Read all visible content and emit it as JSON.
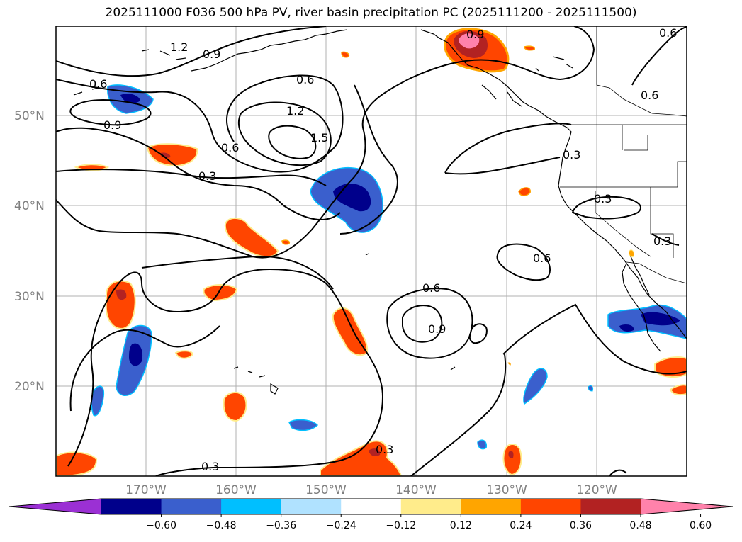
{
  "title": "2025111000 F036 500 hPa PV, river basin precipitation PC (2025111200 - 2025111500)",
  "lat_labels": [
    "50°N",
    "40°N",
    "30°N",
    "20°N"
  ],
  "lon_labels": [
    "170°W",
    "160°W",
    "150°W",
    "140°W",
    "130°W",
    "120°W"
  ],
  "contour_labels": [
    "1.2",
    "0.9",
    "0.6",
    "0.9",
    "0.6",
    "1.2",
    "1.5",
    "0.6",
    "0.3",
    "0.9",
    "0.6",
    "0.6",
    "0.3",
    "0.3",
    "0.3",
    "0.6",
    "0.9",
    "0.6",
    "0.3",
    "0.3"
  ],
  "colorbar": {
    "ticks": [
      "−0.60",
      "−0.48",
      "−0.36",
      "−0.24",
      "−0.12",
      "0.12",
      "0.24",
      "0.36",
      "0.48",
      "0.60"
    ],
    "colors": [
      "#9b30d4",
      "#00008b",
      "#3a5fcd",
      "#00bfff",
      "#b0e2ff",
      "#ffffff",
      "#ffec8b",
      "#ffa500",
      "#ff4500",
      "#b22222",
      "#ff82ab"
    ]
  },
  "colors": {
    "neg_strong": "#00008b",
    "neg_mid": "#3a5fcd",
    "neg_light": "#00bfff",
    "pos_light": "#ffec8b",
    "pos_mid": "#ffa500",
    "pos_strong": "#ff4500",
    "pos_dark": "#b22222",
    "pos_max": "#ff82ab",
    "grid": "#b0b0b0",
    "label_gray": "#808080"
  }
}
